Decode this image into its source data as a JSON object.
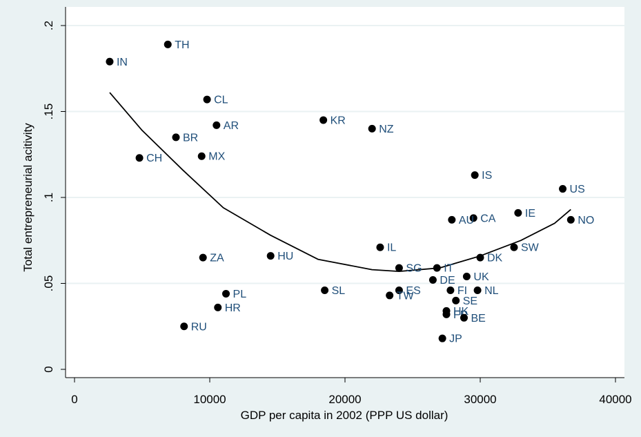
{
  "chart_data": {
    "type": "scatter",
    "title": "",
    "xlabel": "GDP per capita in 2002 (PPP US dollar)",
    "ylabel": "Total entrepreneurial acitivity",
    "xlim": [
      0,
      40000
    ],
    "ylim": [
      0,
      0.2
    ],
    "xticks": [
      0,
      10000,
      20000,
      30000,
      40000
    ],
    "xtick_labels": [
      "0",
      "10000",
      "20000",
      "30000",
      "40000"
    ],
    "yticks": [
      0,
      0.05,
      0.1,
      0.15,
      0.2
    ],
    "ytick_labels": [
      "0",
      ".05",
      ".1",
      ".15",
      ".2"
    ],
    "grid": "horizontal",
    "legend": "none",
    "colors": {
      "background": "#eaf2f3",
      "plot": "#ffffff",
      "grid": "#eaf2f3",
      "points": "#000000",
      "labels": "#1f4e79",
      "line": "#000000"
    },
    "points": [
      {
        "label": "IN",
        "x": 2600,
        "y": 0.179
      },
      {
        "label": "TH",
        "x": 6900,
        "y": 0.189
      },
      {
        "label": "CL",
        "x": 9800,
        "y": 0.157
      },
      {
        "label": "AR",
        "x": 10500,
        "y": 0.142
      },
      {
        "label": "BR",
        "x": 7500,
        "y": 0.135
      },
      {
        "label": "CH",
        "x": 4800,
        "y": 0.123
      },
      {
        "label": "MX",
        "x": 9400,
        "y": 0.124
      },
      {
        "label": "KR",
        "x": 18400,
        "y": 0.145
      },
      {
        "label": "NZ",
        "x": 22000,
        "y": 0.14
      },
      {
        "label": "IS",
        "x": 29600,
        "y": 0.113
      },
      {
        "label": "US",
        "x": 36100,
        "y": 0.105
      },
      {
        "label": "IE",
        "x": 32800,
        "y": 0.091
      },
      {
        "label": "NO",
        "x": 36700,
        "y": 0.087
      },
      {
        "label": "CA",
        "x": 29500,
        "y": 0.088
      },
      {
        "label": "AU",
        "x": 27900,
        "y": 0.087
      },
      {
        "label": "SW",
        "x": 32500,
        "y": 0.071
      },
      {
        "label": "DK",
        "x": 30000,
        "y": 0.065
      },
      {
        "label": "IL",
        "x": 22600,
        "y": 0.071
      },
      {
        "label": "HU",
        "x": 14500,
        "y": 0.066
      },
      {
        "label": "ZA",
        "x": 9500,
        "y": 0.065
      },
      {
        "label": "SG",
        "x": 24000,
        "y": 0.059
      },
      {
        "label": "IT",
        "x": 26800,
        "y": 0.059
      },
      {
        "label": "UK",
        "x": 29000,
        "y": 0.054
      },
      {
        "label": "DE",
        "x": 26500,
        "y": 0.052
      },
      {
        "label": "SL",
        "x": 18500,
        "y": 0.046
      },
      {
        "label": "ES",
        "x": 24000,
        "y": 0.046
      },
      {
        "label": "TW",
        "x": 23300,
        "y": 0.043
      },
      {
        "label": "FI",
        "x": 27800,
        "y": 0.046
      },
      {
        "label": "NL",
        "x": 29800,
        "y": 0.046
      },
      {
        "label": "SE",
        "x": 28200,
        "y": 0.04
      },
      {
        "label": "HK",
        "x": 27500,
        "y": 0.034
      },
      {
        "label": "FR",
        "x": 27500,
        "y": 0.032
      },
      {
        "label": "BE",
        "x": 28800,
        "y": 0.03
      },
      {
        "label": "PL",
        "x": 11200,
        "y": 0.044
      },
      {
        "label": "HR",
        "x": 10600,
        "y": 0.036
      },
      {
        "label": "RU",
        "x": 8100,
        "y": 0.025
      },
      {
        "label": "JP",
        "x": 27200,
        "y": 0.018
      }
    ],
    "fit_line": [
      [
        2600,
        0.161
      ],
      [
        5000,
        0.139
      ],
      [
        8000,
        0.116
      ],
      [
        11000,
        0.094
      ],
      [
        14500,
        0.078
      ],
      [
        18000,
        0.064
      ],
      [
        22000,
        0.058
      ],
      [
        24000,
        0.057
      ],
      [
        27000,
        0.059
      ],
      [
        30000,
        0.066
      ],
      [
        33000,
        0.075
      ],
      [
        35500,
        0.085
      ],
      [
        36700,
        0.093
      ]
    ]
  }
}
